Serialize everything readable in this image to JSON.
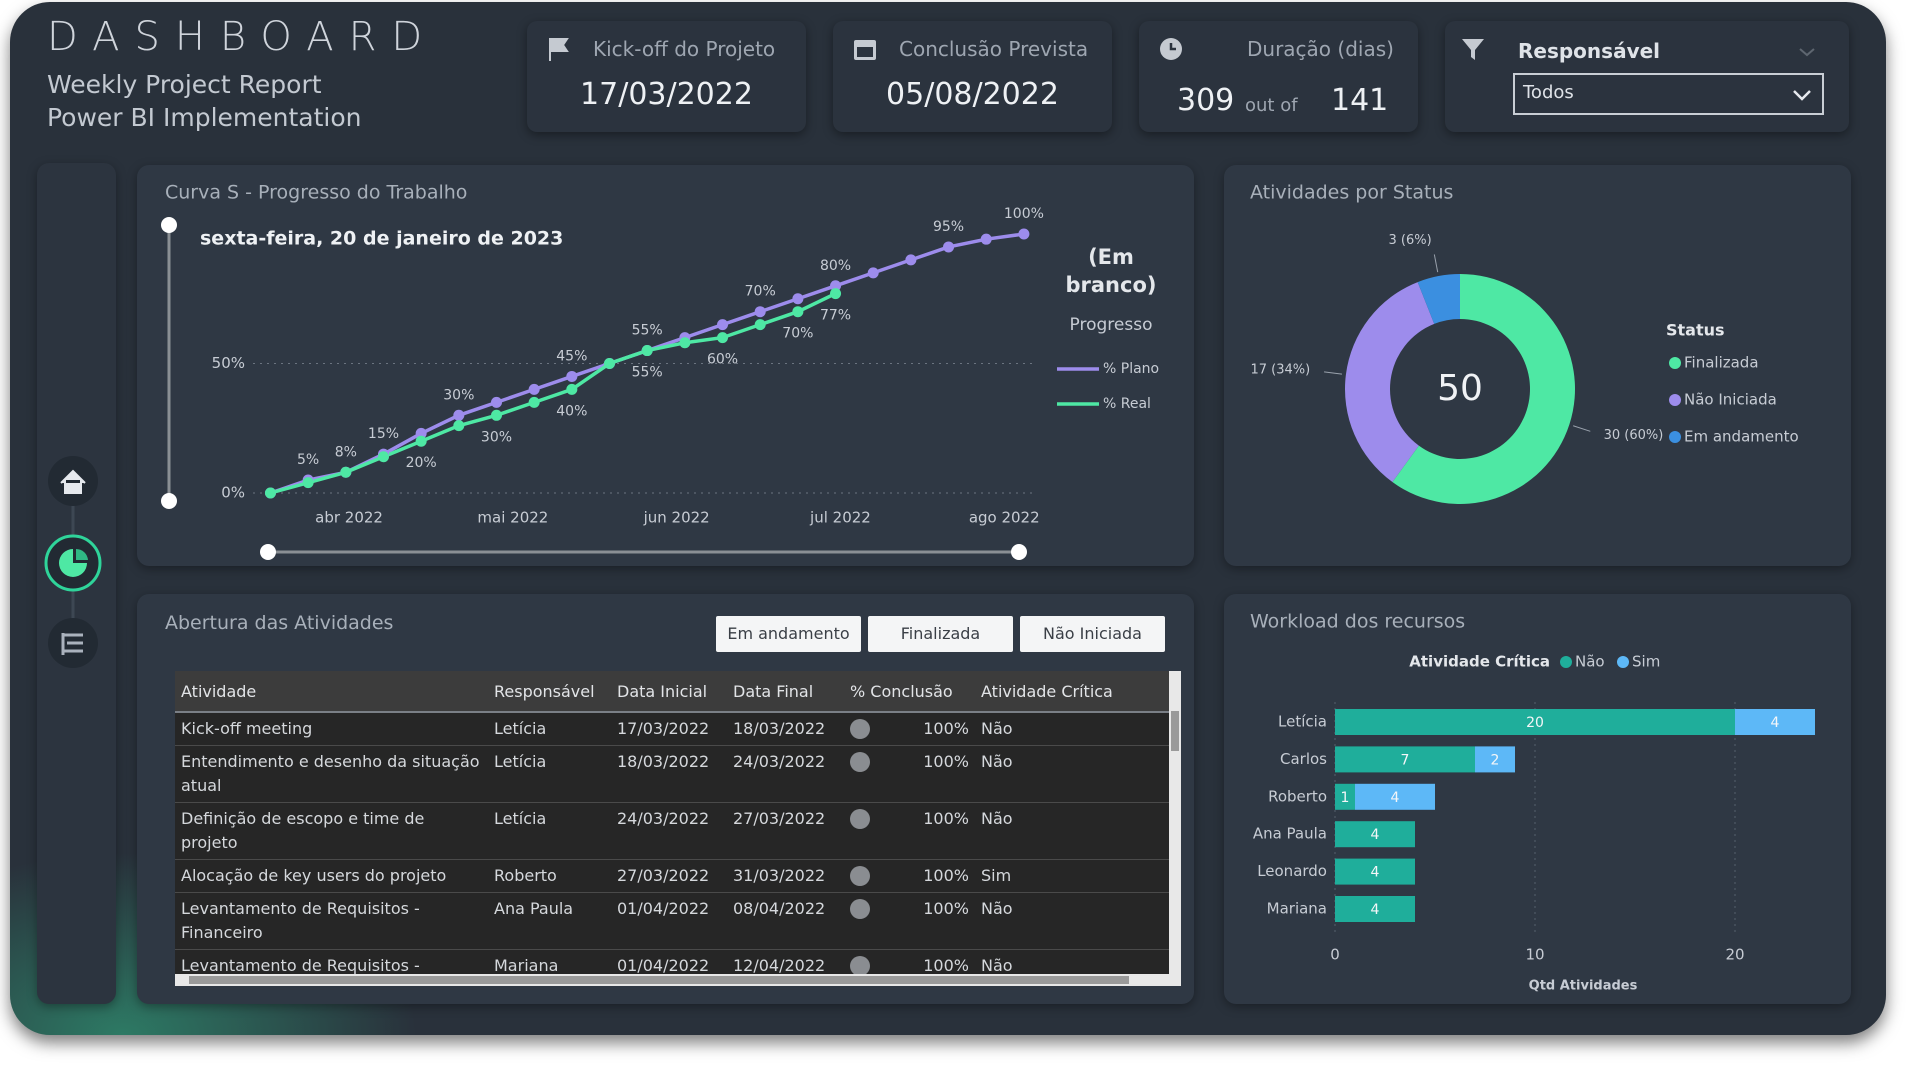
{
  "header": {
    "title": "DASHBOARD",
    "subtitle": [
      "Weekly Project Report",
      "Power BI Implementation"
    ]
  },
  "kpis": [
    {
      "label": "Kick-off do Projeto",
      "value": "17/03/2022"
    },
    {
      "label": "Conclusão Prevista",
      "value": "05/08/2022"
    },
    {
      "label": "Duração (dias)",
      "value": 309,
      "connector": "out of",
      "total": 141
    }
  ],
  "filter": {
    "label": "Responsável",
    "selected": "Todos"
  },
  "chart_data": [
    {
      "type": "line",
      "title": "Curva S - Progresso do Trabalho",
      "annotation": "sexta-feira, 20 de janeiro de 2023",
      "legend_title": "(Em branco)",
      "legend_subtitle": "Progresso",
      "x": [
        3.52,
        3.75,
        3.98,
        4.21,
        4.44,
        4.67,
        4.9,
        5.13,
        5.36,
        5.59,
        5.82,
        6.05,
        6.28,
        6.51,
        6.74,
        6.97,
        7.2,
        7.43,
        7.66,
        7.89,
        8.12
      ],
      "xlim": [
        3.45,
        8.2
      ],
      "xticks": [
        {
          "value": 4,
          "label": "abr 2022"
        },
        {
          "value": 5,
          "label": "mai 2022"
        },
        {
          "value": 6,
          "label": "jun 2022"
        },
        {
          "value": 7,
          "label": "jul 2022"
        },
        {
          "value": 8,
          "label": "ago 2022"
        }
      ],
      "ylim": [
        0,
        100
      ],
      "yticks": [
        {
          "value": 0,
          "label": "0%"
        },
        {
          "value": 50,
          "label": "50%"
        }
      ],
      "grid": true,
      "series": [
        {
          "name": "% Plano",
          "color": "#9d8cec",
          "values": [
            0,
            5,
            8,
            15,
            23,
            30,
            35,
            40,
            45,
            50,
            55,
            60,
            65,
            70,
            75,
            80,
            85,
            90,
            95,
            98,
            100
          ],
          "value_labels": [
            null,
            "5%",
            "8%",
            "15%",
            null,
            "30%",
            null,
            null,
            "45%",
            null,
            "55%",
            null,
            null,
            "70%",
            null,
            "80%",
            null,
            null,
            "95%",
            null,
            "100%"
          ]
        },
        {
          "name": "% Real",
          "color": "#4ee8a4",
          "values": [
            0,
            4,
            8,
            14,
            20,
            26,
            30,
            35,
            40,
            50,
            55,
            58,
            60,
            65,
            70,
            77,
            null,
            null,
            null,
            null,
            null
          ],
          "value_labels": [
            null,
            null,
            null,
            null,
            "20%",
            null,
            "30%",
            null,
            "40%",
            null,
            "55%",
            null,
            "60%",
            null,
            "70%",
            "77%",
            null,
            null,
            null,
            null,
            null
          ]
        }
      ]
    },
    {
      "type": "pie",
      "title": "Atividades por Status",
      "total": 50,
      "legend_title": "Status",
      "categories": [
        "Finalizada",
        "Não Iniciada",
        "Em andamento"
      ],
      "values": [
        30,
        17,
        3
      ],
      "value_labels": [
        "30 (60%)",
        "17 (34%)",
        "3 (6%)"
      ],
      "colors": [
        "#4ee8a4",
        "#9d8cec",
        "#3b8fe0"
      ]
    },
    {
      "type": "bar",
      "orientation": "horizontal",
      "stacked": true,
      "title": "Workload dos recursos",
      "legend_title": "Atividade Crítica",
      "categories": [
        "Letícia",
        "Carlos",
        "Roberto",
        "Ana Paula",
        "Leonardo",
        "Mariana"
      ],
      "series": [
        {
          "name": "Não",
          "color": "#1fae9b",
          "values": [
            20,
            7,
            1,
            4,
            4,
            4
          ]
        },
        {
          "name": "Sim",
          "color": "#5db8f7",
          "values": [
            4,
            2,
            4,
            null,
            null,
            null
          ]
        }
      ],
      "xlim": [
        0,
        25
      ],
      "xticks": [
        0,
        10,
        20
      ],
      "xlabel": "Qtd Atividades",
      "grid": true
    }
  ],
  "table": {
    "title": "Abertura das Atividades",
    "buttons": [
      "Em andamento",
      "Finalizada",
      "Não Iniciada"
    ],
    "columns": [
      "Atividade",
      "Responsável",
      "Data Inicial",
      "Data Final",
      "% Conclusão",
      "Atividade Crítica"
    ],
    "rows": [
      [
        "Kick-off meeting",
        "Letícia",
        "17/03/2022",
        "18/03/2022",
        "100%",
        "Não"
      ],
      [
        "Entendimento e desenho da situação atual",
        "Letícia",
        "18/03/2022",
        "24/03/2022",
        "100%",
        "Não"
      ],
      [
        "Definição de escopo e time de projeto",
        "Letícia",
        "24/03/2022",
        "27/03/2022",
        "100%",
        "Não"
      ],
      [
        "Alocação de key users do projeto",
        "Roberto",
        "27/03/2022",
        "31/03/2022",
        "100%",
        "Sim"
      ],
      [
        "Levantamento de Requisitos - Financeiro",
        "Ana Paula",
        "01/04/2022",
        "08/04/2022",
        "100%",
        "Não"
      ],
      [
        "Levantamento de Requisitos -",
        "Mariana",
        "01/04/2022",
        "12/04/2022",
        "100%",
        "Não"
      ]
    ]
  }
}
